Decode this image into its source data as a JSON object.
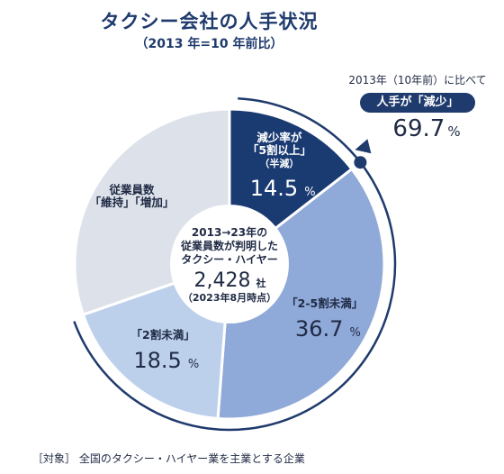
{
  "title": "タクシー会社の人手状況",
  "subtitle": "（2013 年=10 年前比）",
  "center": {
    "line1": "2013→23年の",
    "line2": "従業員数が判明した",
    "line3": "タクシー・ハイヤー",
    "count": "2,428",
    "count_unit": "社",
    "asof": "（2023年8月時点）"
  },
  "callout": {
    "caption": "2013年（10年前）に比べて",
    "pill": "人手が「減少」",
    "value": "69.7",
    "unit": "%"
  },
  "footnote": "［対象］ 全国のタクシー・ハイヤー業を主業とする企業",
  "chart_data": {
    "type": "pie",
    "title": "タクシー会社の人手状況",
    "unit": "%",
    "slices": [
      {
        "label_lines": [
          "減少率が",
          "「5割以上」",
          "（半減）"
        ],
        "value": 14.5,
        "color": "#1a3a72",
        "text_color": "#ffffff"
      },
      {
        "label_lines": [
          "「2-5割未満」"
        ],
        "value": 36.7,
        "color": "#8fa9d8",
        "text_color": "#1f2a44"
      },
      {
        "label_lines": [
          "「2割未満」"
        ],
        "value": 18.5,
        "color": "#bcd0ec",
        "text_color": "#1f2a44"
      },
      {
        "label_lines": [
          "従業員数",
          "「維持」「増加」"
        ],
        "value": 30.3,
        "color": "#dde2ea",
        "text_color": "#1f2a44"
      }
    ],
    "decrease_total": 69.7
  }
}
